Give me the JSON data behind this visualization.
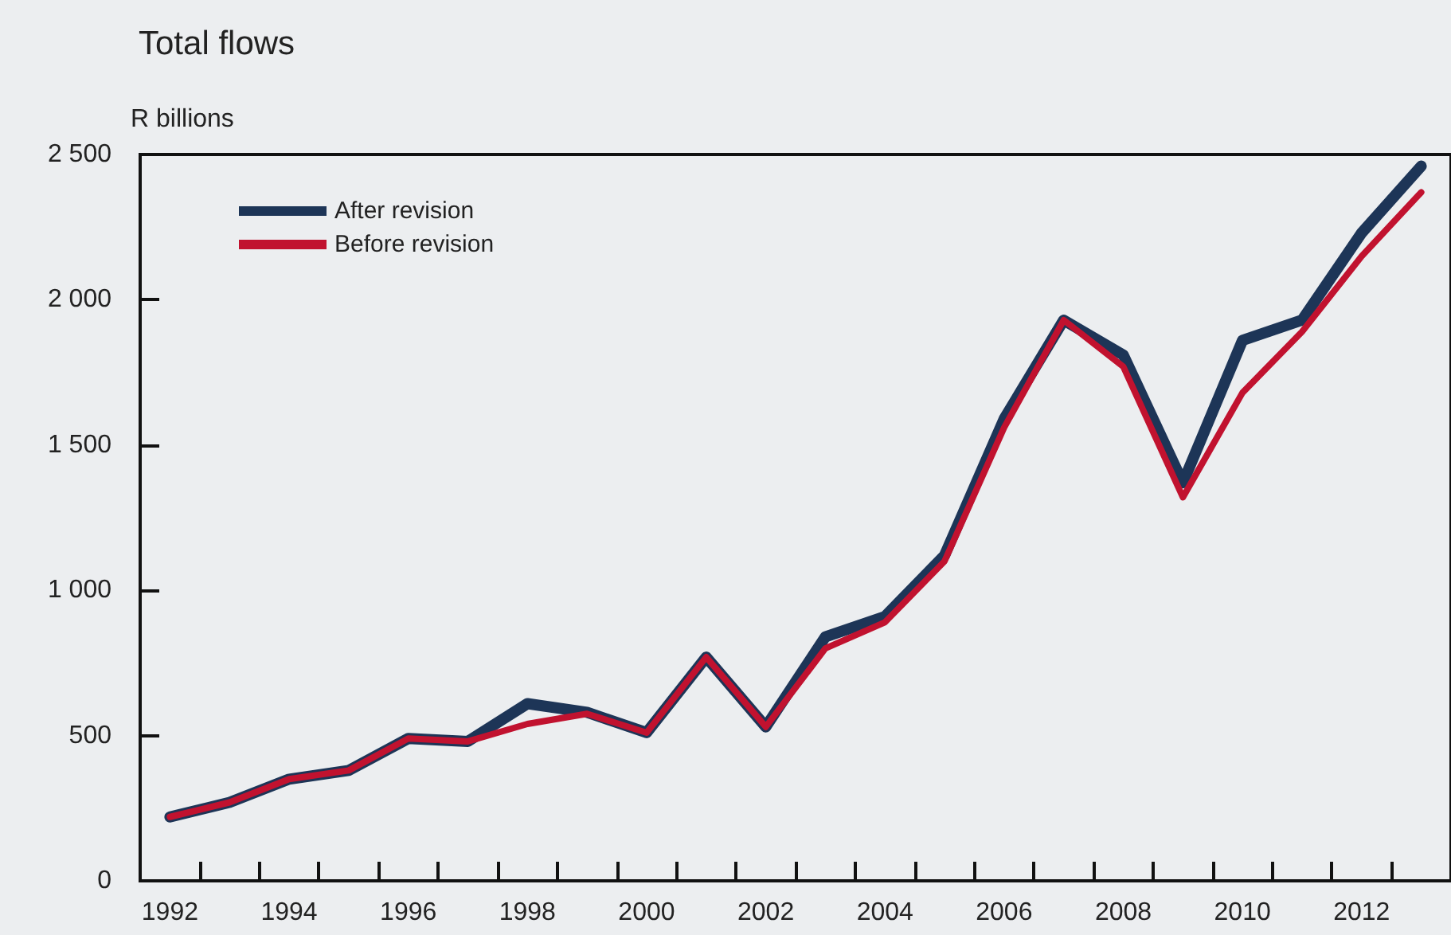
{
  "chart_data": {
    "type": "line",
    "title": "Total flows",
    "ylabel": "R billions",
    "categories": [
      "1992",
      null,
      "1994",
      null,
      "1996",
      null,
      "1998",
      null,
      "2000",
      null,
      "2002",
      null,
      "2004",
      null,
      "2006",
      null,
      "2008",
      null,
      "2010",
      null,
      "2012",
      null
    ],
    "series": [
      {
        "name": "After revision",
        "color": "#1d3557",
        "values": [
          220,
          270,
          350,
          380,
          490,
          480,
          610,
          580,
          510,
          770,
          530,
          840,
          910,
          1120,
          1590,
          1930,
          1810,
          1370,
          1860,
          1930,
          2230,
          2460
        ]
      },
      {
        "name": "Before revision",
        "color": "#c1122f",
        "values": [
          220,
          270,
          350,
          380,
          490,
          480,
          540,
          575,
          510,
          770,
          530,
          800,
          890,
          1100,
          1560,
          1930,
          1770,
          1320,
          1680,
          1890,
          2150,
          2370
        ]
      }
    ],
    "ylim": [
      0,
      2500
    ],
    "yticks": [
      0,
      500,
      {
        "value": 1000,
        "label": "1 000"
      },
      {
        "value": 1500,
        "label": "1 500"
      },
      {
        "value": 2000,
        "label": "2 000"
      },
      {
        "value": 2500,
        "label": "2 500"
      }
    ],
    "grid": false,
    "legend": "top left",
    "marker": "none",
    "line_style": "solid"
  }
}
